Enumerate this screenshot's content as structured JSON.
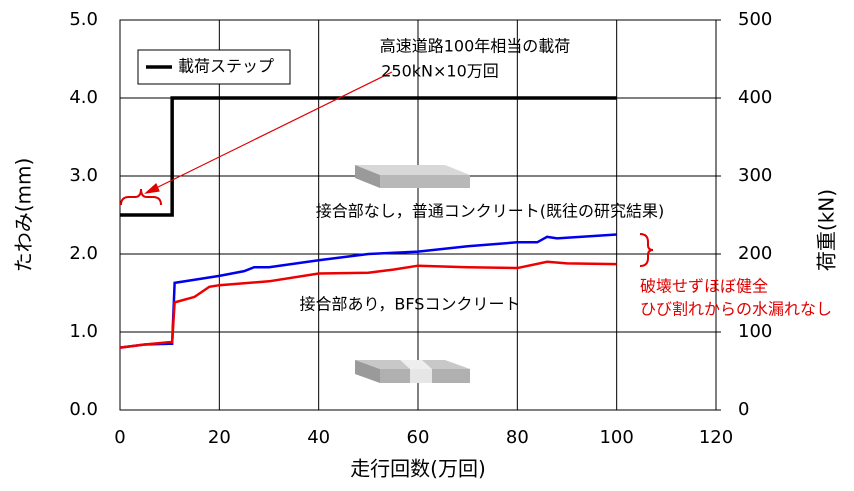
{
  "chart_data": {
    "type": "line",
    "x_label": "走行回数(万回)",
    "y_label": "たわみ(mm)",
    "y2_label": "荷重(kN)",
    "xlim": [
      0,
      120
    ],
    "xticks": [
      0,
      20,
      40,
      60,
      80,
      100,
      120
    ],
    "ylim": [
      0,
      5
    ],
    "yticks": [
      {
        "value": 0,
        "label": "0.0"
      },
      {
        "value": 1,
        "label": "1.0"
      },
      {
        "value": 2,
        "label": "2.0"
      },
      {
        "value": 3,
        "label": "3.0"
      },
      {
        "value": 4,
        "label": "4.0"
      },
      {
        "value": 5,
        "label": "5.0"
      }
    ],
    "y2lim": [
      0,
      500
    ],
    "y2ticks": [
      0,
      100,
      200,
      300,
      400,
      500
    ],
    "grid": true,
    "legend": "upper left",
    "series": [
      {
        "name": "載荷ステップ",
        "color": "#000000",
        "axis": "y2",
        "legend": true,
        "x": [
          0,
          10.5,
          10.5,
          100
        ],
        "values": [
          250,
          250,
          400,
          400
        ]
      },
      {
        "name": "接合部なし，普通コンクリート(既往の研究結果)",
        "color": "#0000ee",
        "legend": false,
        "x": [
          0,
          5,
          10,
          10.5,
          11,
          20,
          25,
          27,
          30,
          40,
          50,
          60,
          70,
          80,
          84,
          86,
          88,
          100
        ],
        "values": [
          0.8,
          0.84,
          0.85,
          0.85,
          1.63,
          1.72,
          1.78,
          1.83,
          1.83,
          1.92,
          2.0,
          2.03,
          2.1,
          2.15,
          2.15,
          2.22,
          2.2,
          2.25
        ]
      },
      {
        "name": "接合部あり，BFSコンクリート",
        "color": "#ee0000",
        "legend": false,
        "x": [
          0,
          5,
          10,
          10.5,
          11,
          15,
          18,
          20,
          30,
          40,
          50,
          55,
          60,
          70,
          80,
          86,
          90,
          100
        ],
        "values": [
          0.8,
          0.84,
          0.87,
          0.87,
          1.38,
          1.45,
          1.58,
          1.6,
          1.65,
          1.75,
          1.76,
          1.8,
          1.85,
          1.83,
          1.82,
          1.9,
          1.88,
          1.87
        ]
      }
    ],
    "annotations": [
      "高速道路100年相当の載荷",
      "250kN×10万回",
      "破壊せずほぼ健全",
      "ひび割れからの水漏れなし"
    ]
  }
}
